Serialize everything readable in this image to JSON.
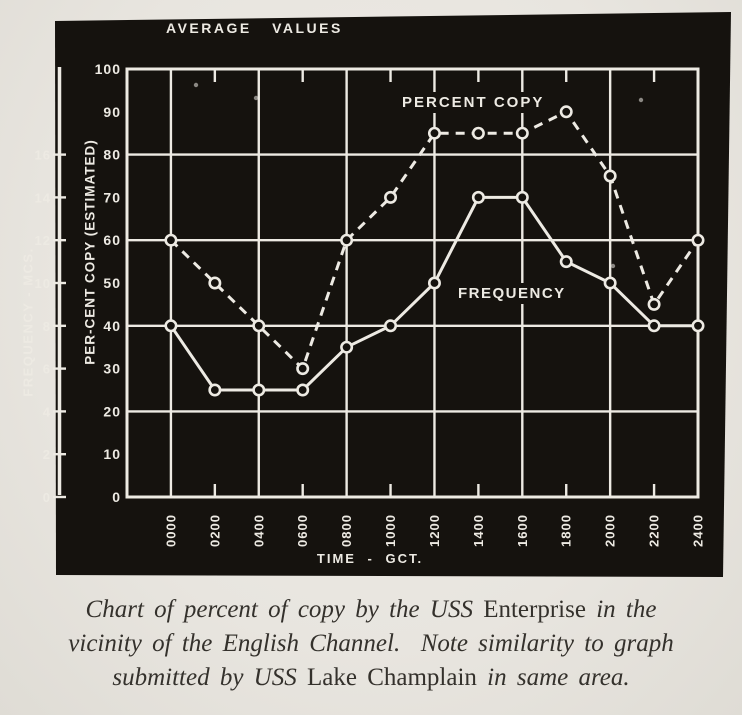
{
  "photo_title": "AVERAGE VALUES",
  "chart_data": {
    "type": "line",
    "title": "AVERAGE VALUES",
    "x": {
      "label": "TIME - GCT.",
      "tick_labels": [
        "0000",
        "0200",
        "0400",
        "0600",
        "0800",
        "1000",
        "1200",
        "1400",
        "1600",
        "1800",
        "2000",
        "2200",
        "2400"
      ],
      "gridline_every": "0400",
      "tick_every": "0200"
    },
    "y_percent_axis": {
      "label": "PER-CENT COPY (ESTIMATED)",
      "ticks": [
        100,
        90,
        80,
        70,
        60,
        50,
        40,
        30,
        20,
        10,
        0
      ],
      "range": [
        0,
        100
      ],
      "gridline_interval": 20
    },
    "y_frequency_axis": {
      "label": "FREQUENCY - MCS.",
      "ticks": [
        16,
        14,
        12,
        10,
        8,
        6,
        4,
        2,
        0
      ],
      "range": [
        0,
        20
      ]
    },
    "series": [
      {
        "name": "PERCENT COPY",
        "style": "dashed",
        "marker": "open-circle",
        "values": [
          60,
          50,
          40,
          30,
          60,
          70,
          85,
          85,
          85,
          90,
          75,
          45,
          60
        ]
      },
      {
        "name": "FREQUENCY",
        "style": "solid",
        "marker": "open-circle",
        "values": [
          40,
          25,
          25,
          25,
          35,
          40,
          50,
          70,
          70,
          55,
          50,
          40,
          40
        ]
      }
    ],
    "grid": true,
    "legend_position": "inline-labels",
    "colors": {
      "photo_background": "#15120e",
      "line_and_text": "#edeae3",
      "paper": "#e8e5df",
      "caption_text": "#34312c"
    }
  },
  "caption": {
    "lines": [
      [
        {
          "text": "Chart of percent of copy by the USS ",
          "style": "italic"
        },
        {
          "text": "Enterprise",
          "style": "roman"
        },
        {
          "text": " in the",
          "style": "italic"
        }
      ],
      [
        {
          "text": "vicinity of the English Channel.  Note similarity to graph",
          "style": "italic"
        }
      ],
      [
        {
          "text": "submitted by USS ",
          "style": "italic"
        },
        {
          "text": "Lake Champlain",
          "style": "roman"
        },
        {
          "text": " in same area.",
          "style": "italic"
        }
      ]
    ]
  }
}
